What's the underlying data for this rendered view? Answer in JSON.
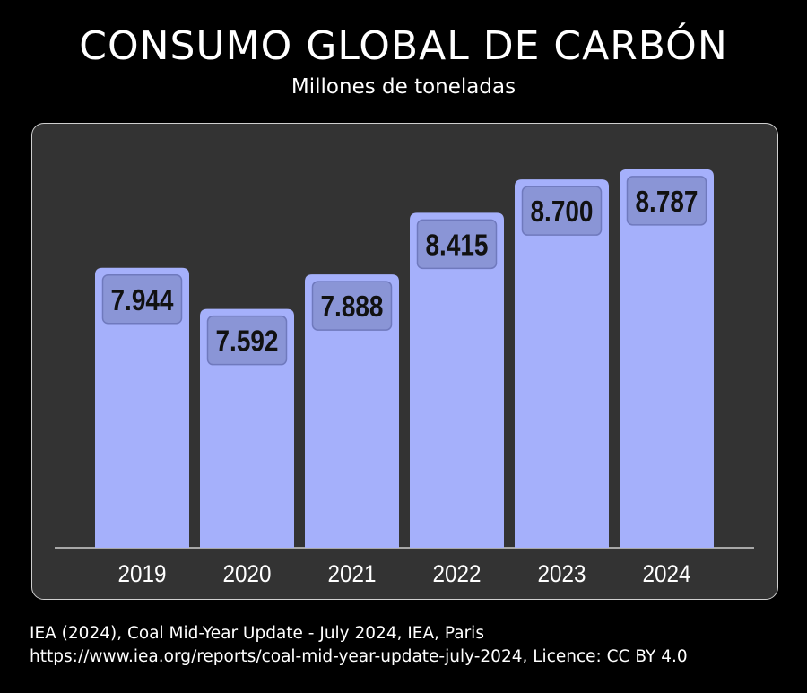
{
  "header": {
    "title": "CONSUMO GLOBAL DE CARBÓN",
    "subtitle": "Millones de toneladas"
  },
  "source": {
    "line1": "IEA (2024), Coal Mid-Year Update - July 2024, IEA, Paris",
    "line2": "https://www.iea.org/reports/coal-mid-year-update-july-2024, Licence: CC BY 4.0"
  },
  "colors": {
    "background": "#000000",
    "panel": "#333333",
    "bar": "#a5b0fb",
    "label_box": "#8a95d6",
    "label_border": "#6f79bd",
    "label_text": "#111111",
    "axis_text": "#ffffff"
  },
  "chart_data": {
    "type": "bar",
    "title": "CONSUMO GLOBAL DE CARBÓN",
    "subtitle": "Millones de toneladas",
    "xlabel": "",
    "ylabel": "Millones de toneladas",
    "categories": [
      "2019",
      "2020",
      "2021",
      "2022",
      "2023",
      "2024"
    ],
    "values": [
      7944,
      7592,
      7888,
      8415,
      8700,
      8787
    ],
    "value_labels": [
      "7.944",
      "7.592",
      "7.888",
      "8.415",
      "8.700",
      "8.787"
    ],
    "ylim": [
      5550,
      9100
    ],
    "grid": false,
    "legend": "none"
  }
}
